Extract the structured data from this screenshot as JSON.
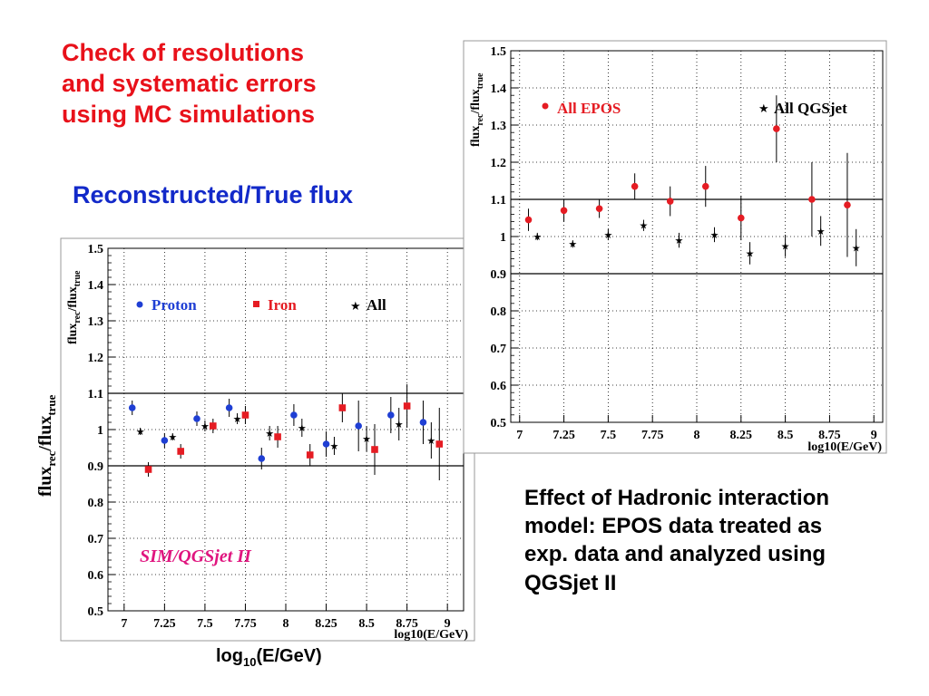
{
  "heading": {
    "line1": "Check of resolutions",
    "line2": "and systematic errors",
    "line3": "using MC simulations"
  },
  "subheading": "Reconstructed/True flux",
  "caption": {
    "line1": "Effect of Hadronic interaction",
    "line2": "model: EPOS data treated as",
    "line3": "exp. data and analyzed using",
    "line4": "QGSjet II"
  },
  "outer_xlabel": {
    "prefix": "log",
    "sub": "10",
    "suffix": "(E/GeV)"
  },
  "outer_ylabel": {
    "main1": "flux",
    "sub1": "rec",
    "main2": "/flux",
    "sub2": "true"
  },
  "colors": {
    "red_text": "#e8111a",
    "blue_text": "#1229c9",
    "magenta": "#e0157f",
    "proton": "#1f3fd4",
    "iron": "#e51c23",
    "epos": "#e51c23",
    "star": "#000000"
  },
  "chart_data": [
    {
      "type": "scatter",
      "ylabel_main": "flux",
      "ylabel_sub1": "rec",
      "ylabel_mid": "/flux",
      "ylabel_sub2": "true",
      "xlabel": "log10(E/GeV)",
      "xlim": [
        6.9,
        9.1
      ],
      "ylim": [
        0.5,
        1.5
      ],
      "xticks": [
        7,
        7.25,
        7.5,
        7.75,
        8,
        8.25,
        8.5,
        8.75,
        9
      ],
      "xtick_labels": [
        "7",
        "7.25",
        "7.5",
        "7.75",
        "8",
        "8.25",
        "8.5",
        "8.75",
        "9"
      ],
      "yticks": [
        0.5,
        0.6,
        0.7,
        0.8,
        0.9,
        1,
        1.1,
        1.2,
        1.3,
        1.4,
        1.5
      ],
      "ytick_labels": [
        "0.5",
        "0.6",
        "0.7",
        "0.8",
        "0.9",
        "1",
        "1.1",
        "1.2",
        "1.3",
        "1.4",
        "1.5"
      ],
      "reference_lines": [
        0.9,
        1.1
      ],
      "annotation": "SIM/QGSjet II",
      "legend": [
        "Proton",
        "Iron",
        "All"
      ],
      "series": [
        {
          "name": "Proton",
          "marker": "circle",
          "x": [
            7.05,
            7.25,
            7.45,
            7.65,
            7.85,
            8.05,
            8.25,
            8.45,
            8.65,
            8.85
          ],
          "y": [
            1.06,
            0.97,
            1.03,
            1.06,
            0.92,
            1.04,
            0.96,
            1.01,
            1.04,
            1.02
          ],
          "err": [
            0.02,
            0.02,
            0.02,
            0.025,
            0.03,
            0.03,
            0.035,
            0.07,
            0.05,
            0.06
          ]
        },
        {
          "name": "Iron",
          "marker": "square",
          "x": [
            7.15,
            7.35,
            7.55,
            7.75,
            7.95,
            8.15,
            8.35,
            8.55,
            8.75,
            8.95
          ],
          "y": [
            0.89,
            0.94,
            1.01,
            1.04,
            0.98,
            0.93,
            1.06,
            0.945,
            1.065,
            0.96
          ],
          "err": [
            0.02,
            0.02,
            0.02,
            0.025,
            0.03,
            0.03,
            0.04,
            0.07,
            0.06,
            0.1
          ]
        },
        {
          "name": "All",
          "marker": "star",
          "x": [
            7.1,
            7.3,
            7.5,
            7.7,
            7.9,
            8.1,
            8.3,
            8.5,
            8.7,
            8.9
          ],
          "y": [
            0.995,
            0.98,
            1.01,
            1.03,
            0.99,
            1.005,
            0.955,
            0.975,
            1.015,
            0.97
          ],
          "err": [
            0.01,
            0.01,
            0.015,
            0.015,
            0.02,
            0.025,
            0.025,
            0.035,
            0.045,
            0.05
          ]
        }
      ]
    },
    {
      "type": "scatter",
      "ylabel_main": "flux",
      "ylabel_sub1": "rec",
      "ylabel_mid": "/flux",
      "ylabel_sub2": "true",
      "xlabel": "log10(E/GeV)",
      "xlim": [
        6.95,
        9.05
      ],
      "ylim": [
        0.5,
        1.5
      ],
      "xticks": [
        7,
        7.25,
        7.5,
        7.75,
        8,
        8.25,
        8.5,
        8.75,
        9
      ],
      "xtick_labels": [
        "7",
        "7.25",
        "7.5",
        "7.75",
        "8",
        "8.25",
        "8.5",
        "8.75",
        "9"
      ],
      "yticks": [
        0.5,
        0.6,
        0.7,
        0.8,
        0.9,
        1,
        1.1,
        1.2,
        1.3,
        1.4,
        1.5
      ],
      "ytick_labels": [
        "0.5",
        "0.6",
        "0.7",
        "0.8",
        "0.9",
        "1",
        "1.1",
        "1.2",
        "1.3",
        "1.4",
        "1.5"
      ],
      "reference_lines": [
        0.9,
        1.1
      ],
      "legend": [
        "All EPOS",
        "All QGSjet"
      ],
      "series": [
        {
          "name": "All EPOS",
          "marker": "circle",
          "x": [
            7.05,
            7.25,
            7.45,
            7.65,
            7.85,
            8.05,
            8.25,
            8.45,
            8.65,
            8.85
          ],
          "y": [
            1.045,
            1.07,
            1.075,
            1.135,
            1.095,
            1.135,
            1.05,
            1.29,
            1.1,
            1.085
          ],
          "err": [
            0.03,
            0.03,
            0.025,
            0.035,
            0.04,
            0.055,
            0.06,
            0.09,
            0.1,
            0.14
          ]
        },
        {
          "name": "All QGSjet",
          "marker": "star",
          "x": [
            7.1,
            7.3,
            7.5,
            7.7,
            7.9,
            8.1,
            8.3,
            8.5,
            8.7,
            8.9
          ],
          "y": [
            1.0,
            0.98,
            1.005,
            1.03,
            0.99,
            1.005,
            0.955,
            0.975,
            1.015,
            0.97
          ],
          "err": [
            0.01,
            0.01,
            0.015,
            0.015,
            0.02,
            0.02,
            0.03,
            0.03,
            0.04,
            0.05
          ]
        }
      ]
    }
  ]
}
